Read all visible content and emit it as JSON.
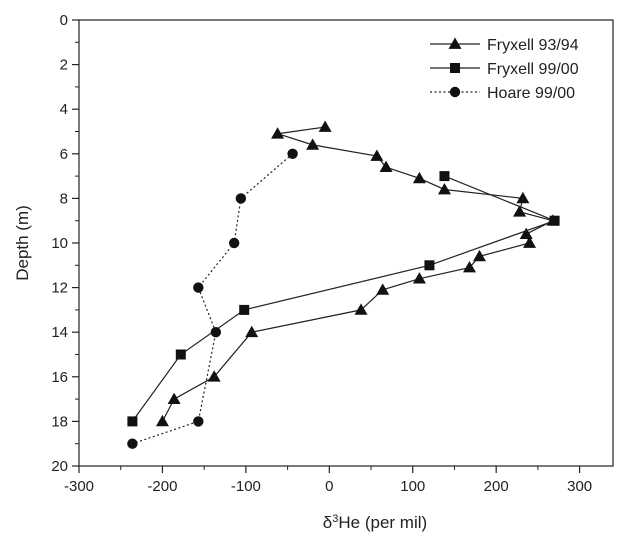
{
  "chart_data": {
    "type": "line",
    "xlabel_prefix": "δ",
    "xlabel_super": "3",
    "xlabel_suffix": "He (per mil)",
    "ylabel": "Depth (m)",
    "xlim": [
      -300,
      340
    ],
    "ylim": [
      20,
      0
    ],
    "y_inverted": true,
    "x_ticks": [
      -300,
      -200,
      -100,
      0,
      100,
      200,
      300
    ],
    "x_tick_labels": [
      "-300",
      "-200",
      "-100",
      "0",
      "100",
      "200",
      "300"
    ],
    "y_ticks": [
      0,
      2,
      4,
      6,
      8,
      10,
      12,
      14,
      16,
      18,
      20
    ],
    "y_tick_labels": [
      "0",
      "2",
      "4",
      "6",
      "8",
      "10",
      "12",
      "14",
      "16",
      "18",
      "20"
    ],
    "grid": false,
    "legend_position": "top-right",
    "series": [
      {
        "name": "Fryxell 93/94",
        "marker": "triangle",
        "line_style": "solid",
        "color": "#222222",
        "points": [
          [
            -5,
            4.8
          ],
          [
            -62,
            5.1
          ],
          [
            -20,
            5.6
          ],
          [
            57,
            6.1
          ],
          [
            68,
            6.6
          ],
          [
            108,
            7.1
          ],
          [
            138,
            7.6
          ],
          [
            232,
            8.0
          ],
          [
            228,
            8.6
          ],
          [
            268,
            9.0
          ],
          [
            236,
            9.6
          ],
          [
            240,
            10.0
          ],
          [
            180,
            10.6
          ],
          [
            168,
            11.1
          ],
          [
            108,
            11.6
          ],
          [
            64,
            12.1
          ],
          [
            38,
            13.0
          ],
          [
            -93,
            14.0
          ],
          [
            -138,
            16.0
          ],
          [
            -186,
            17.0
          ],
          [
            -200,
            18.0
          ]
        ]
      },
      {
        "name": "Fryxell 99/00",
        "marker": "square",
        "line_style": "solid",
        "color": "#222222",
        "points": [
          [
            138,
            7.0
          ],
          [
            270,
            9.0
          ],
          [
            120,
            11.0
          ],
          [
            -102,
            13.0
          ],
          [
            -178,
            15.0
          ],
          [
            -236,
            18.0
          ]
        ]
      },
      {
        "name": "Hoare 99/00",
        "marker": "circle",
        "line_style": "dotted",
        "color": "#222222",
        "points": [
          [
            -44,
            6.0
          ],
          [
            -106,
            8.0
          ],
          [
            -114,
            10.0
          ],
          [
            -157,
            12.0
          ],
          [
            -136,
            14.0
          ],
          [
            -157,
            18.0
          ],
          [
            -236,
            19.0
          ]
        ]
      }
    ]
  }
}
